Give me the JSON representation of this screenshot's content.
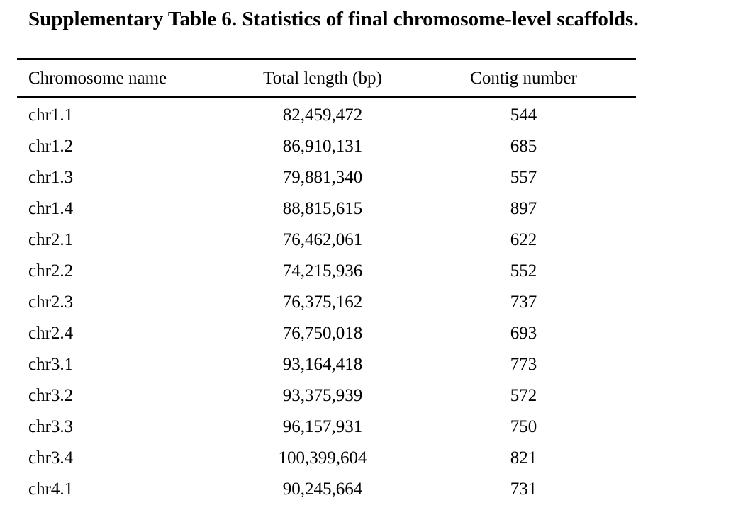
{
  "title": "Supplementary Table 6. Statistics of final chromosome-level scaffolds.",
  "table": {
    "headers": [
      "Chromosome name",
      "Total length (bp)",
      "Contig number"
    ],
    "rows": [
      [
        "chr1.1",
        "82,459,472",
        "544"
      ],
      [
        "chr1.2",
        "86,910,131",
        "685"
      ],
      [
        "chr1.3",
        "79,881,340",
        "557"
      ],
      [
        "chr1.4",
        "88,815,615",
        "897"
      ],
      [
        "chr2.1",
        "76,462,061",
        "622"
      ],
      [
        "chr2.2",
        "74,215,936",
        "552"
      ],
      [
        "chr2.3",
        "76,375,162",
        "737"
      ],
      [
        "chr2.4",
        "76,750,018",
        "693"
      ],
      [
        "chr3.1",
        "93,164,418",
        "773"
      ],
      [
        "chr3.2",
        "93,375,939",
        "572"
      ],
      [
        "chr3.3",
        "96,157,931",
        "750"
      ],
      [
        "chr3.4",
        "100,399,604",
        "821"
      ],
      [
        "chr4.1",
        "90,245,664",
        "731"
      ]
    ]
  }
}
